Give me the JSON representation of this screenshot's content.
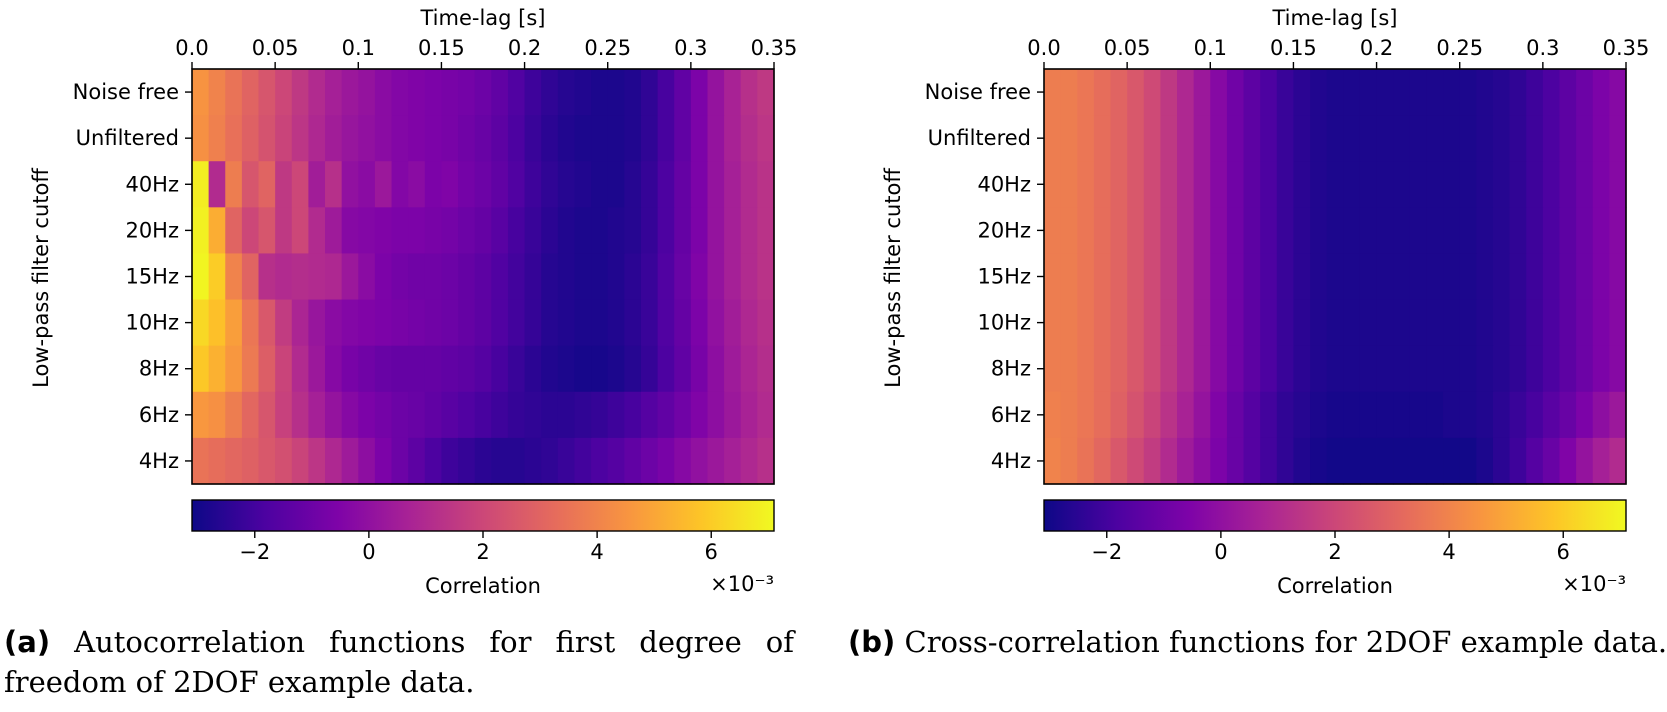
{
  "chart_data": [
    {
      "type": "heatmap",
      "xlabel": "Time-lag [s]",
      "ylabel": "Low-pass filter cutoff",
      "x_ticks": [
        0.0,
        0.05,
        0.1,
        0.15,
        0.2,
        0.25,
        0.3,
        0.35
      ],
      "x_tick_labels": [
        "0.0",
        "0.05",
        "0.1",
        "0.15",
        "0.2",
        "0.25",
        "0.3",
        "0.35"
      ],
      "xlim": [
        0.0,
        0.35
      ],
      "rows": [
        "Noise free",
        "Unfiltered",
        "40Hz",
        "20Hz",
        "15Hz",
        "10Hz",
        "8Hz",
        "6Hz",
        "4Hz"
      ],
      "colormap": "plasma",
      "colorbar": {
        "label": "Correlation",
        "range": [
          -3.1,
          7.1
        ],
        "ticks": [
          -2,
          0,
          2,
          4,
          6
        ],
        "tick_labels": [
          "−2",
          "0",
          "2",
          "4",
          "6"
        ],
        "scale_label": "×10⁻³"
      },
      "values_1e-3": [
        [
          4.5,
          4.0,
          3.5,
          3.0,
          2.5,
          2.0,
          1.5,
          1.0,
          0.6,
          0.3,
          0.1,
          -0.2,
          -0.4,
          -0.5,
          -0.6,
          -0.7,
          -0.8,
          -1.0,
          -1.3,
          -1.7,
          -2.1,
          -2.4,
          -2.6,
          -2.7,
          -2.8,
          -2.8,
          -2.7,
          -2.4,
          -1.9,
          -1.3,
          -0.6,
          0.1,
          0.7,
          1.2,
          1.5
        ],
        [
          4.4,
          3.9,
          3.4,
          2.9,
          2.4,
          1.9,
          1.4,
          0.9,
          0.5,
          0.2,
          0.0,
          -0.2,
          -0.4,
          -0.5,
          -0.6,
          -0.7,
          -0.9,
          -1.1,
          -1.4,
          -1.8,
          -2.2,
          -2.5,
          -2.7,
          -2.8,
          -2.8,
          -2.8,
          -2.7,
          -2.4,
          -1.9,
          -1.3,
          -0.6,
          0.1,
          0.7,
          1.1,
          1.4
        ],
        [
          6.8,
          1.0,
          3.8,
          2.5,
          3.0,
          1.5,
          2.0,
          0.5,
          1.2,
          0.0,
          -0.2,
          0.3,
          -0.4,
          -0.2,
          -0.6,
          -0.5,
          -0.8,
          -1.0,
          -1.3,
          -1.7,
          -2.1,
          -2.4,
          -2.6,
          -2.7,
          -2.8,
          -2.8,
          -2.6,
          -2.3,
          -1.8,
          -1.2,
          -0.6,
          0.1,
          0.6,
          1.0,
          1.3
        ],
        [
          6.9,
          5.2,
          3.0,
          2.0,
          2.5,
          1.5,
          2.0,
          1.0,
          0.4,
          -0.3,
          -0.4,
          -0.5,
          -0.6,
          -0.6,
          -0.7,
          -0.8,
          -1.0,
          -1.2,
          -1.5,
          -1.9,
          -2.2,
          -2.5,
          -2.7,
          -2.8,
          -2.8,
          -2.7,
          -2.6,
          -2.3,
          -1.8,
          -1.2,
          -0.6,
          0.1,
          0.6,
          1.0,
          1.3
        ],
        [
          7.0,
          6.0,
          4.0,
          3.0,
          1.2,
          1.0,
          1.1,
          1.0,
          0.9,
          0.3,
          -0.2,
          -0.6,
          -0.8,
          -0.9,
          -0.9,
          -1.0,
          -1.2,
          -1.4,
          -1.7,
          -2.0,
          -2.3,
          -2.6,
          -2.7,
          -2.8,
          -2.8,
          -2.7,
          -2.5,
          -2.2,
          -1.7,
          -1.1,
          -0.5,
          0.1,
          0.6,
          1.0,
          1.3
        ],
        [
          6.3,
          5.7,
          4.8,
          3.6,
          2.6,
          1.6,
          0.8,
          0.2,
          -0.2,
          -0.4,
          -0.5,
          -0.6,
          -0.7,
          -0.8,
          -0.9,
          -1.0,
          -1.2,
          -1.4,
          -1.7,
          -2.0,
          -2.3,
          -2.6,
          -2.7,
          -2.8,
          -2.8,
          -2.7,
          -2.5,
          -2.2,
          -1.7,
          -1.2,
          -0.6,
          0.0,
          0.5,
          0.9,
          1.2
        ],
        [
          5.9,
          5.3,
          4.6,
          3.7,
          2.8,
          1.9,
          1.0,
          0.3,
          -0.3,
          -0.7,
          -0.9,
          -1.1,
          -1.2,
          -1.2,
          -1.2,
          -1.3,
          -1.4,
          -1.6,
          -1.9,
          -2.2,
          -2.5,
          -2.7,
          -2.8,
          -2.9,
          -2.9,
          -2.8,
          -2.6,
          -2.3,
          -1.8,
          -1.3,
          -0.7,
          -0.1,
          0.4,
          0.8,
          1.1
        ],
        [
          4.6,
          4.4,
          3.8,
          3.1,
          2.5,
          1.8,
          1.2,
          0.6,
          0.1,
          -0.3,
          -0.6,
          -0.8,
          -1.0,
          -1.1,
          -1.3,
          -1.5,
          -1.7,
          -1.9,
          -2.1,
          -2.3,
          -2.4,
          -2.5,
          -2.5,
          -2.4,
          -2.3,
          -2.1,
          -1.9,
          -1.6,
          -1.3,
          -0.9,
          -0.5,
          -0.1,
          0.3,
          0.7,
          1.0
        ],
        [
          3.5,
          3.3,
          3.1,
          2.9,
          2.6,
          2.3,
          1.9,
          1.4,
          0.9,
          0.4,
          -0.1,
          -0.6,
          -1.0,
          -1.4,
          -1.8,
          -2.1,
          -2.3,
          -2.5,
          -2.6,
          -2.6,
          -2.5,
          -2.4,
          -2.2,
          -2.0,
          -1.8,
          -1.6,
          -1.3,
          -1.0,
          -0.7,
          -0.3,
          0.0,
          0.3,
          0.6,
          0.9,
          1.2
        ]
      ]
    },
    {
      "type": "heatmap",
      "xlabel": "Time-lag [s]",
      "ylabel": "Low-pass filter cutoff",
      "x_ticks": [
        0.0,
        0.05,
        0.1,
        0.15,
        0.2,
        0.25,
        0.3,
        0.35
      ],
      "x_tick_labels": [
        "0.0",
        "0.05",
        "0.1",
        "0.15",
        "0.2",
        "0.25",
        "0.3",
        "0.35"
      ],
      "xlim": [
        0.0,
        0.35
      ],
      "rows": [
        "Noise free",
        "Unfiltered",
        "40Hz",
        "20Hz",
        "15Hz",
        "10Hz",
        "8Hz",
        "6Hz",
        "4Hz"
      ],
      "colormap": "plasma",
      "colorbar": {
        "label": "Correlation",
        "range": [
          -3.1,
          7.1
        ],
        "ticks": [
          -2,
          0,
          2,
          4,
          6
        ],
        "tick_labels": [
          "−2",
          "0",
          "2",
          "4",
          "6"
        ],
        "scale_label": "×10⁻³"
      },
      "values_1e-3": [
        [
          3.8,
          3.8,
          3.6,
          3.3,
          3.0,
          2.6,
          2.1,
          1.5,
          0.9,
          0.3,
          -0.3,
          -0.9,
          -1.4,
          -1.8,
          -2.2,
          -2.5,
          -2.7,
          -2.8,
          -2.8,
          -2.8,
          -2.8,
          -2.8,
          -2.8,
          -2.8,
          -2.8,
          -2.8,
          -2.7,
          -2.6,
          -2.4,
          -2.1,
          -1.8,
          -1.4,
          -1.0,
          -0.6,
          -0.3
        ],
        [
          3.8,
          3.8,
          3.6,
          3.3,
          3.0,
          2.6,
          2.1,
          1.5,
          0.9,
          0.3,
          -0.3,
          -0.9,
          -1.4,
          -1.8,
          -2.2,
          -2.5,
          -2.7,
          -2.8,
          -2.8,
          -2.8,
          -2.8,
          -2.8,
          -2.8,
          -2.8,
          -2.8,
          -2.8,
          -2.7,
          -2.6,
          -2.4,
          -2.1,
          -1.8,
          -1.4,
          -1.0,
          -0.6,
          -0.3
        ],
        [
          3.8,
          3.8,
          3.6,
          3.3,
          3.0,
          2.6,
          2.1,
          1.5,
          0.9,
          0.3,
          -0.3,
          -0.9,
          -1.4,
          -1.8,
          -2.2,
          -2.5,
          -2.7,
          -2.8,
          -2.8,
          -2.8,
          -2.8,
          -2.8,
          -2.8,
          -2.8,
          -2.8,
          -2.8,
          -2.7,
          -2.6,
          -2.4,
          -2.1,
          -1.8,
          -1.4,
          -1.0,
          -0.6,
          -0.3
        ],
        [
          3.8,
          3.8,
          3.6,
          3.3,
          3.0,
          2.6,
          2.1,
          1.5,
          0.9,
          0.3,
          -0.3,
          -0.9,
          -1.4,
          -1.8,
          -2.2,
          -2.5,
          -2.7,
          -2.8,
          -2.8,
          -2.8,
          -2.8,
          -2.8,
          -2.8,
          -2.8,
          -2.8,
          -2.8,
          -2.7,
          -2.6,
          -2.4,
          -2.1,
          -1.8,
          -1.4,
          -1.0,
          -0.6,
          -0.3
        ],
        [
          3.8,
          3.8,
          3.6,
          3.3,
          3.0,
          2.6,
          2.1,
          1.5,
          0.9,
          0.3,
          -0.3,
          -0.9,
          -1.4,
          -1.8,
          -2.2,
          -2.5,
          -2.7,
          -2.8,
          -2.8,
          -2.8,
          -2.8,
          -2.8,
          -2.8,
          -2.8,
          -2.8,
          -2.8,
          -2.7,
          -2.6,
          -2.4,
          -2.1,
          -1.8,
          -1.4,
          -1.0,
          -0.6,
          -0.3
        ],
        [
          3.8,
          3.8,
          3.6,
          3.3,
          3.0,
          2.6,
          2.1,
          1.5,
          0.9,
          0.3,
          -0.3,
          -0.9,
          -1.4,
          -1.8,
          -2.2,
          -2.5,
          -2.7,
          -2.8,
          -2.8,
          -2.8,
          -2.8,
          -2.8,
          -2.8,
          -2.8,
          -2.8,
          -2.8,
          -2.7,
          -2.6,
          -2.4,
          -2.1,
          -1.8,
          -1.4,
          -1.0,
          -0.6,
          -0.3
        ],
        [
          3.8,
          3.8,
          3.6,
          3.3,
          3.0,
          2.6,
          2.1,
          1.5,
          0.9,
          0.3,
          -0.3,
          -0.9,
          -1.4,
          -1.8,
          -2.2,
          -2.5,
          -2.7,
          -2.8,
          -2.8,
          -2.8,
          -2.8,
          -2.8,
          -2.8,
          -2.8,
          -2.8,
          -2.8,
          -2.7,
          -2.6,
          -2.4,
          -2.1,
          -1.8,
          -1.4,
          -1.0,
          -0.6,
          -0.3
        ],
        [
          3.9,
          3.8,
          3.6,
          3.3,
          2.9,
          2.4,
          1.9,
          1.3,
          0.7,
          0.1,
          -0.5,
          -1.1,
          -1.6,
          -2.0,
          -2.4,
          -2.6,
          -2.8,
          -2.9,
          -2.9,
          -2.9,
          -2.9,
          -2.9,
          -2.9,
          -2.9,
          -2.8,
          -2.8,
          -2.7,
          -2.5,
          -2.2,
          -1.9,
          -1.5,
          -1.1,
          -0.6,
          -0.1,
          0.3
        ],
        [
          4.0,
          3.8,
          3.5,
          3.1,
          2.6,
          2.1,
          1.6,
          1.0,
          0.4,
          -0.1,
          -0.6,
          -1.1,
          -1.6,
          -2.0,
          -2.4,
          -2.7,
          -2.9,
          -3.0,
          -3.0,
          -3.0,
          -3.0,
          -3.0,
          -3.0,
          -3.0,
          -3.0,
          -3.0,
          -2.8,
          -2.5,
          -2.1,
          -1.6,
          -1.1,
          -0.5,
          0.1,
          0.6,
          1.0
        ]
      ]
    }
  ],
  "captions": [
    {
      "label": "(a)",
      "text": "Autocorrelation functions for first degree of freedom of 2DOF example data."
    },
    {
      "label": "(b)",
      "text": "Cross-correlation functions for 2DOF example data."
    }
  ]
}
